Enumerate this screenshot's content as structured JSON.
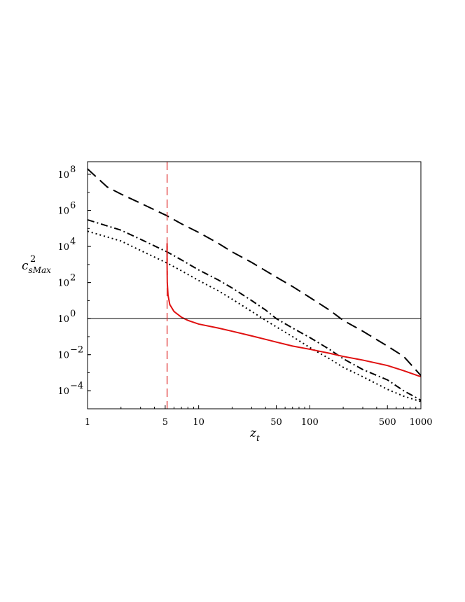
{
  "chart_data": {
    "type": "line",
    "title": "",
    "xlabel": {
      "base": "z",
      "sub": "t"
    },
    "ylabel": {
      "base": "c",
      "sup": "2",
      "sub": "sMax"
    },
    "x_scale": "log",
    "y_scale": "log",
    "xlim": [
      1,
      1000
    ],
    "ylim": [
      1e-05,
      500000000
    ],
    "x_ticks": [
      {
        "value": 1,
        "label": "1"
      },
      {
        "value": 5,
        "label": "5"
      },
      {
        "value": 10,
        "label": "10"
      },
      {
        "value": 50,
        "label": "50"
      },
      {
        "value": 100,
        "label": "100"
      },
      {
        "value": 500,
        "label": "500"
      },
      {
        "value": 1000,
        "label": "1000"
      }
    ],
    "y_ticks": [
      {
        "value": 0.0001,
        "base": "10",
        "exp": "−4"
      },
      {
        "value": 0.01,
        "base": "10",
        "exp": "−2"
      },
      {
        "value": 1,
        "base": "10",
        "exp": "0"
      },
      {
        "value": 100,
        "base": "10",
        "exp": "2"
      },
      {
        "value": 10000,
        "base": "10",
        "exp": "4"
      },
      {
        "value": 1000000,
        "base": "10",
        "exp": "6"
      },
      {
        "value": 100000000,
        "base": "10",
        "exp": "8"
      }
    ],
    "grid": false,
    "legend": "none",
    "reference_lines": [
      {
        "orientation": "horizontal",
        "value": 1,
        "color": "#000000",
        "style": "solid"
      },
      {
        "orientation": "vertical",
        "value": 5.2,
        "color": "#e03030",
        "style": "dashed"
      }
    ],
    "series": [
      {
        "style": "dashed",
        "color": "#000000",
        "points": [
          [
            1,
            200000000
          ],
          [
            1.5,
            20000000
          ],
          [
            2,
            8000000
          ],
          [
            3,
            2500000
          ],
          [
            5.2,
            500000
          ],
          [
            7,
            180000
          ],
          [
            10,
            60000
          ],
          [
            15,
            15000
          ],
          [
            20,
            5000
          ],
          [
            30,
            1300
          ],
          [
            50,
            200
          ],
          [
            70,
            60
          ],
          [
            100,
            15
          ],
          [
            150,
            3
          ],
          [
            200,
            0.8
          ],
          [
            300,
            0.2
          ],
          [
            500,
            0.03
          ],
          [
            700,
            0.008
          ],
          [
            1000,
            0.0007
          ]
        ]
      },
      {
        "style": "dashdot",
        "color": "#000000",
        "points": [
          [
            1,
            300000
          ],
          [
            2,
            80000
          ],
          [
            3,
            25000
          ],
          [
            5.2,
            5000
          ],
          [
            7,
            1800
          ],
          [
            10,
            500
          ],
          [
            15,
            140
          ],
          [
            20,
            50
          ],
          [
            30,
            10
          ],
          [
            40,
            3
          ],
          [
            50,
            1
          ],
          [
            70,
            0.3
          ],
          [
            100,
            0.09
          ],
          [
            150,
            0.02
          ],
          [
            200,
            0.006
          ],
          [
            300,
            0.0015
          ],
          [
            500,
            0.0004
          ],
          [
            700,
            0.0001
          ],
          [
            1000,
            3e-05
          ]
        ]
      },
      {
        "style": "dotted",
        "color": "#000000",
        "points": [
          [
            1,
            70000
          ],
          [
            2,
            20000
          ],
          [
            3,
            6000
          ],
          [
            5.2,
            1200
          ],
          [
            7,
            450
          ],
          [
            10,
            130
          ],
          [
            15,
            35
          ],
          [
            20,
            12
          ],
          [
            30,
            2.5
          ],
          [
            40,
            0.8
          ],
          [
            50,
            0.35
          ],
          [
            70,
            0.1
          ],
          [
            100,
            0.025
          ],
          [
            150,
            0.006
          ],
          [
            200,
            0.002
          ],
          [
            300,
            0.0006
          ],
          [
            500,
            0.00012
          ],
          [
            700,
            5e-05
          ],
          [
            1000,
            2.5e-05
          ]
        ]
      },
      {
        "style": "solid",
        "color": "#e01010",
        "points": [
          [
            5.2,
            15000
          ],
          [
            5.2,
            1000
          ],
          [
            5.22,
            100
          ],
          [
            5.3,
            20
          ],
          [
            5.5,
            6
          ],
          [
            6,
            2.5
          ],
          [
            7,
            1.2
          ],
          [
            8,
            0.8
          ],
          [
            10,
            0.5
          ],
          [
            15,
            0.3
          ],
          [
            20,
            0.2
          ],
          [
            30,
            0.11
          ],
          [
            50,
            0.05
          ],
          [
            70,
            0.03
          ],
          [
            100,
            0.02
          ],
          [
            150,
            0.012
          ],
          [
            200,
            0.008
          ],
          [
            300,
            0.005
          ],
          [
            500,
            0.0025
          ],
          [
            700,
            0.0013
          ],
          [
            1000,
            0.0006
          ]
        ]
      }
    ]
  }
}
